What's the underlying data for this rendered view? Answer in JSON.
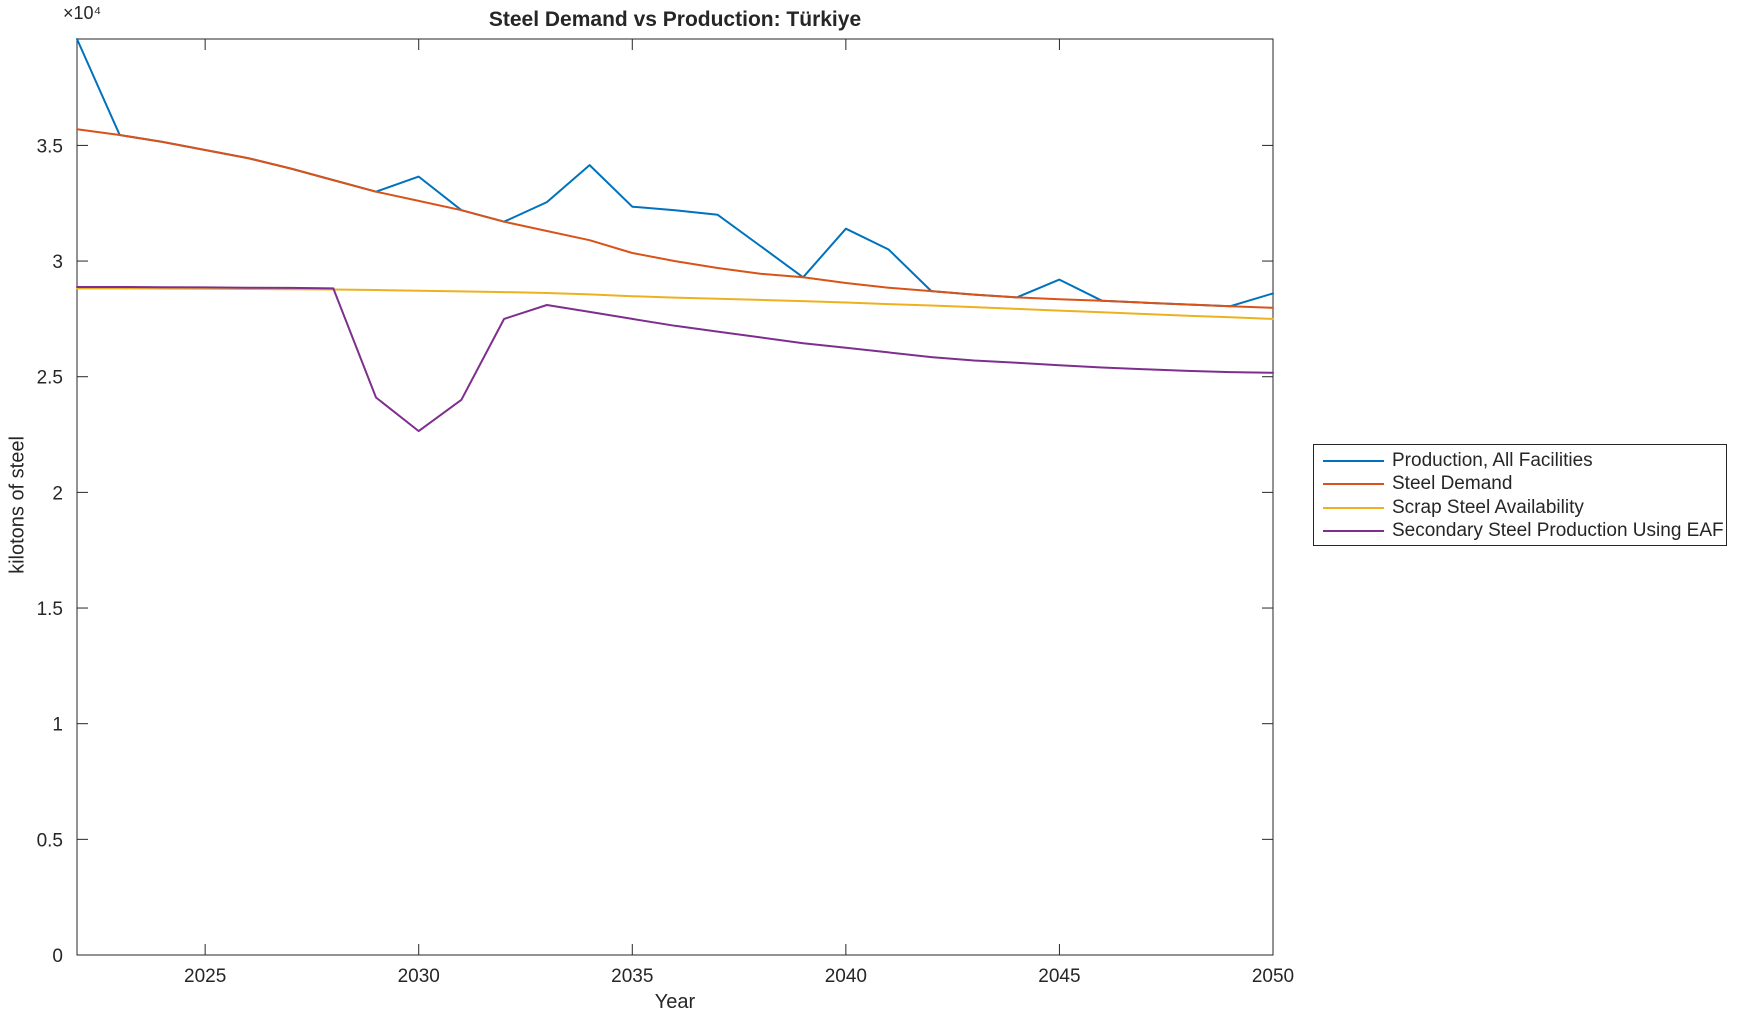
{
  "title": "Steel Demand vs Production: Türkiye",
  "axes": {
    "x_label": "Year",
    "y_label": "kilotons of steel",
    "y_axis_multiplier": "×10⁴",
    "x_ticks": [
      2025,
      2030,
      2035,
      2040,
      2045,
      2050
    ],
    "y_ticks": [
      0,
      0.5,
      1,
      1.5,
      2,
      2.5,
      3,
      3.5
    ]
  },
  "style": {
    "axis_color": "#262626",
    "text_color": "#262626",
    "background_color": "#ffffff"
  },
  "chart_data": {
    "type": "line",
    "title": "Steel Demand vs Production: Türkiye",
    "xlabel": "Year",
    "ylabel": "kilotons of steel",
    "xlim": [
      2022,
      2050
    ],
    "ylim": [
      0,
      39600
    ],
    "grid": false,
    "legend_position": "outside-right",
    "x": [
      2022,
      2023,
      2024,
      2025,
      2026,
      2027,
      2028,
      2029,
      2030,
      2031,
      2032,
      2033,
      2034,
      2035,
      2036,
      2037,
      2038,
      2039,
      2040,
      2041,
      2042,
      2043,
      2044,
      2045,
      2046,
      2047,
      2048,
      2049,
      2050
    ],
    "series": [
      {
        "name": "Production, All Facilities",
        "color": "#0072BD",
        "values": [
          39600,
          35450,
          35150,
          34800,
          34450,
          34000,
          33500,
          33000,
          33650,
          32200,
          31700,
          32550,
          34150,
          32350,
          32200,
          32000,
          30650,
          29300,
          31400,
          30500,
          28700,
          28550,
          28430,
          29200,
          28280,
          28200,
          28120,
          28050,
          28600
        ]
      },
      {
        "name": "Steel Demand",
        "color": "#D95319",
        "values": [
          35700,
          35450,
          35150,
          34800,
          34450,
          34000,
          33500,
          33000,
          32600,
          32200,
          31700,
          31300,
          30900,
          30350,
          30000,
          29700,
          29450,
          29300,
          29050,
          28850,
          28700,
          28550,
          28430,
          28350,
          28280,
          28200,
          28120,
          28050,
          27980
        ]
      },
      {
        "name": "Scrap Steel Availability",
        "color": "#EDB120",
        "values": [
          28820,
          28820,
          28810,
          28800,
          28790,
          28780,
          28770,
          28750,
          28720,
          28690,
          28660,
          28620,
          28560,
          28480,
          28420,
          28370,
          28320,
          28270,
          28210,
          28140,
          28080,
          28010,
          27930,
          27860,
          27790,
          27710,
          27640,
          27570,
          27500
        ]
      },
      {
        "name": "Secondary Steel Production Using EAF",
        "color": "#7E2F8E",
        "values": [
          28880,
          28880,
          28870,
          28860,
          28850,
          28840,
          28820,
          24100,
          22650,
          24000,
          27500,
          28100,
          27800,
          27500,
          27200,
          26950,
          26700,
          26450,
          26250,
          26050,
          25850,
          25700,
          25600,
          25500,
          25400,
          25320,
          25250,
          25200,
          25170
        ]
      }
    ]
  }
}
